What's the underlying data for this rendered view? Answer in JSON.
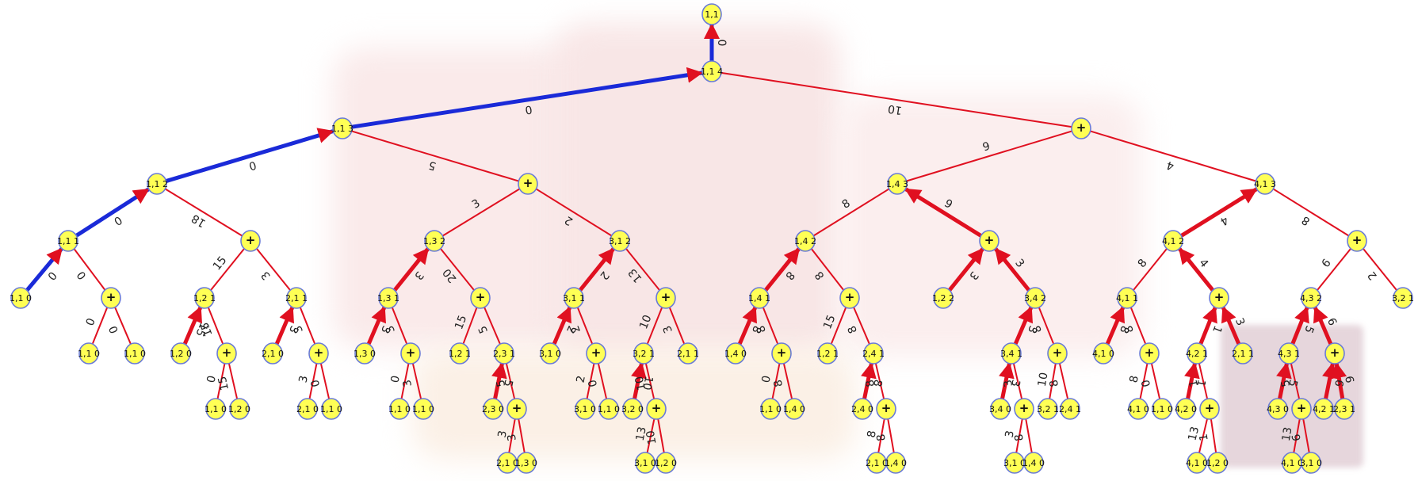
{
  "colors": {
    "node_fill": "#ffff55",
    "node_stroke": "#6a7bd6",
    "red_edge": "#e01020",
    "blue_edge": "#1a2ad8",
    "background_faint": "#f7e4e4"
  },
  "nodes": [
    {
      "id": "n0",
      "label": "1,1"
    },
    {
      "id": "n1",
      "label": "1,1 4"
    },
    {
      "id": "n2",
      "label": "1,1 3"
    },
    {
      "id": "n3",
      "label": "1,1 2"
    },
    {
      "id": "n4",
      "label": "1,1 1"
    },
    {
      "id": "n5",
      "label": "1,1 0"
    },
    {
      "id": "n6",
      "label": "+"
    },
    {
      "id": "n7",
      "label": "1,1 0"
    },
    {
      "id": "n8",
      "label": "1,1 0"
    },
    {
      "id": "n9",
      "label": "+"
    },
    {
      "id": "n10",
      "label": "1,2 1"
    },
    {
      "id": "n11",
      "label": "2,1 1"
    },
    {
      "id": "n12",
      "label": "1,2 0"
    },
    {
      "id": "n13",
      "label": "+"
    },
    {
      "id": "n14",
      "label": "1,1 0"
    },
    {
      "id": "n15",
      "label": "1,2 0"
    },
    {
      "id": "n16",
      "label": "2,1 0"
    },
    {
      "id": "n17",
      "label": "+"
    },
    {
      "id": "n18",
      "label": "2,1 0"
    },
    {
      "id": "n19",
      "label": "1,1 0"
    },
    {
      "id": "n20",
      "label": "+"
    },
    {
      "id": "n21",
      "label": "1,3 2"
    },
    {
      "id": "n22",
      "label": "3,1 2"
    },
    {
      "id": "n23",
      "label": "1,3 1"
    },
    {
      "id": "n24",
      "label": "+"
    },
    {
      "id": "n25",
      "label": "1,3 0"
    },
    {
      "id": "n26",
      "label": "+"
    },
    {
      "id": "n27",
      "label": "1,1 0"
    },
    {
      "id": "n28",
      "label": "1,1 0"
    },
    {
      "id": "n29",
      "label": "1,2 1"
    },
    {
      "id": "n30",
      "label": "2,3 1"
    },
    {
      "id": "n31",
      "label": "2,3 0"
    },
    {
      "id": "n32",
      "label": "+"
    },
    {
      "id": "n33",
      "label": "2,1 0"
    },
    {
      "id": "n34",
      "label": "1,3 0"
    },
    {
      "id": "n35",
      "label": "3,1 1"
    },
    {
      "id": "n36",
      "label": "+"
    },
    {
      "id": "n37",
      "label": "3,1 0"
    },
    {
      "id": "n38",
      "label": "+"
    },
    {
      "id": "n39",
      "label": "3,1 0"
    },
    {
      "id": "n40",
      "label": "1,1 0"
    },
    {
      "id": "n41",
      "label": "3,2 1"
    },
    {
      "id": "n42",
      "label": "2,1 1"
    },
    {
      "id": "n43",
      "label": "3,2 0"
    },
    {
      "id": "n44",
      "label": "+"
    },
    {
      "id": "n45",
      "label": "3,1 0"
    },
    {
      "id": "n46",
      "label": "1,2 0"
    },
    {
      "id": "n47",
      "label": "+"
    },
    {
      "id": "n48",
      "label": "1,4 3"
    },
    {
      "id": "n49",
      "label": "4,1 3"
    },
    {
      "id": "n50",
      "label": "1,4 2"
    },
    {
      "id": "n51",
      "label": "+"
    },
    {
      "id": "n52",
      "label": "1,4 1"
    },
    {
      "id": "n53",
      "label": "+"
    },
    {
      "id": "n54",
      "label": "1,4 0"
    },
    {
      "id": "n55",
      "label": "+"
    },
    {
      "id": "n56",
      "label": "1,1 0"
    },
    {
      "id": "n57",
      "label": "1,4 0"
    },
    {
      "id": "n58",
      "label": "1,2 1"
    },
    {
      "id": "n59",
      "label": "2,4 1"
    },
    {
      "id": "n60",
      "label": "2,4 0"
    },
    {
      "id": "n61",
      "label": "+"
    },
    {
      "id": "n62",
      "label": "2,1 0"
    },
    {
      "id": "n63",
      "label": "1,4 0"
    },
    {
      "id": "n64",
      "label": "1,2 2"
    },
    {
      "id": "n65",
      "label": "3,4 2"
    },
    {
      "id": "n66",
      "label": "3,4 1"
    },
    {
      "id": "n67",
      "label": "+"
    },
    {
      "id": "n68",
      "label": "3,4 0"
    },
    {
      "id": "n69",
      "label": "+"
    },
    {
      "id": "n70",
      "label": "3,1 0"
    },
    {
      "id": "n71",
      "label": "1,4 0"
    },
    {
      "id": "n72",
      "label": "3,2 1"
    },
    {
      "id": "n73",
      "label": "2,4 1"
    },
    {
      "id": "n74",
      "label": "4,1 2"
    },
    {
      "id": "n75",
      "label": "+"
    },
    {
      "id": "n76",
      "label": "4,1 1"
    },
    {
      "id": "n77",
      "label": "+"
    },
    {
      "id": "n78",
      "label": "4,1 0"
    },
    {
      "id": "n79",
      "label": "+"
    },
    {
      "id": "n80",
      "label": "4,1 0"
    },
    {
      "id": "n81",
      "label": "1,1 0"
    },
    {
      "id": "n82",
      "label": "1,4 0"
    },
    {
      "id": "n83",
      "label": "4,2 1"
    },
    {
      "id": "n84",
      "label": "2,1 1"
    },
    {
      "id": "n85",
      "label": "4,2 0"
    },
    {
      "id": "n86",
      "label": "+"
    },
    {
      "id": "n87",
      "label": "4,1 0"
    },
    {
      "id": "n88",
      "label": "1,2 0"
    },
    {
      "id": "n89",
      "label": "4,3 2"
    },
    {
      "id": "n90",
      "label": "3,2 1"
    },
    {
      "id": "n91",
      "label": "4,3 1"
    },
    {
      "id": "n92",
      "label": "+"
    },
    {
      "id": "n93",
      "label": "4,3 0"
    },
    {
      "id": "n94",
      "label": "+"
    },
    {
      "id": "n95",
      "label": "4,2 1"
    },
    {
      "id": "n96",
      "label": "2,3 1"
    },
    {
      "id": "n97",
      "label": "4,1 0"
    },
    {
      "id": "n98",
      "label": "3,1 0"
    }
  ],
  "edges": [
    {
      "from": "n1",
      "to": "n0",
      "label": "0",
      "color": "blue",
      "w": 5,
      "arrow": true
    },
    {
      "from": "n2",
      "to": "n1",
      "label": "0",
      "color": "blue",
      "w": 5,
      "arrow": true
    },
    {
      "from": "n3",
      "to": "n2",
      "label": "0",
      "color": "blue",
      "w": 5,
      "arrow": true
    },
    {
      "from": "n4",
      "to": "n3",
      "label": "0",
      "color": "blue",
      "w": 5,
      "arrow": true
    },
    {
      "from": "n5",
      "to": "n4",
      "label": "0",
      "color": "blue",
      "w": 5,
      "arrow": true
    },
    {
      "from": "n4",
      "to": "n6",
      "label": "0",
      "color": "red",
      "w": 2
    },
    {
      "from": "n6",
      "to": "n7",
      "label": "0",
      "color": "red",
      "w": 2
    },
    {
      "from": "n6",
      "to": "n8",
      "label": "0",
      "color": "red",
      "w": 2
    },
    {
      "from": "n3",
      "to": "n9",
      "label": "18",
      "color": "red",
      "w": 2
    },
    {
      "from": "n9",
      "to": "n10",
      "label": "15",
      "color": "red",
      "w": 2
    },
    {
      "from": "n9",
      "to": "n11",
      "label": "3",
      "color": "red",
      "w": 2
    },
    {
      "from": "n12",
      "to": "n10",
      "label": "15",
      "color": "red",
      "w": 5,
      "arrow": true
    },
    {
      "from": "n10",
      "to": "n13",
      "label": "15",
      "color": "red",
      "w": 2
    },
    {
      "from": "n13",
      "to": "n14",
      "label": "0",
      "color": "red",
      "w": 2
    },
    {
      "from": "n13",
      "to": "n15",
      "label": "15",
      "color": "red",
      "w": 2
    },
    {
      "from": "n16",
      "to": "n11",
      "label": "3",
      "color": "red",
      "w": 5,
      "arrow": true
    },
    {
      "from": "n11",
      "to": "n17",
      "label": "3",
      "color": "red",
      "w": 2
    },
    {
      "from": "n17",
      "to": "n18",
      "label": "3",
      "color": "red",
      "w": 2
    },
    {
      "from": "n17",
      "to": "n19",
      "label": "0",
      "color": "red",
      "w": 2
    },
    {
      "from": "n2",
      "to": "n20",
      "label": "5",
      "color": "red",
      "w": 2
    },
    {
      "from": "n20",
      "to": "n21",
      "label": "3",
      "color": "red",
      "w": 2
    },
    {
      "from": "n20",
      "to": "n22",
      "label": "2",
      "color": "red",
      "w": 2
    },
    {
      "from": "n23",
      "to": "n21",
      "label": "3",
      "color": "red",
      "w": 5,
      "arrow": true
    },
    {
      "from": "n21",
      "to": "n24",
      "label": "20",
      "color": "red",
      "w": 2
    },
    {
      "from": "n25",
      "to": "n23",
      "label": "3",
      "color": "red",
      "w": 5,
      "arrow": true
    },
    {
      "from": "n23",
      "to": "n26",
      "label": "3",
      "color": "red",
      "w": 2
    },
    {
      "from": "n26",
      "to": "n27",
      "label": "0",
      "color": "red",
      "w": 2
    },
    {
      "from": "n26",
      "to": "n28",
      "label": "3",
      "color": "red",
      "w": 2
    },
    {
      "from": "n24",
      "to": "n29",
      "label": "15",
      "color": "red",
      "w": 2
    },
    {
      "from": "n24",
      "to": "n30",
      "label": "5",
      "color": "red",
      "w": 2
    },
    {
      "from": "n31",
      "to": "n30",
      "label": "5",
      "color": "red",
      "w": 5,
      "arrow": true
    },
    {
      "from": "n30",
      "to": "n32",
      "label": "5",
      "color": "red",
      "w": 2
    },
    {
      "from": "n32",
      "to": "n33",
      "label": "3",
      "color": "red",
      "w": 2
    },
    {
      "from": "n32",
      "to": "n34",
      "label": "3",
      "color": "red",
      "w": 2
    },
    {
      "from": "n35",
      "to": "n22",
      "label": "2",
      "color": "red",
      "w": 5,
      "arrow": true
    },
    {
      "from": "n22",
      "to": "n36",
      "label": "13",
      "color": "red",
      "w": 2
    },
    {
      "from": "n37",
      "to": "n35",
      "label": "2",
      "color": "red",
      "w": 5,
      "arrow": true
    },
    {
      "from": "n35",
      "to": "n38",
      "label": "2",
      "color": "red",
      "w": 2
    },
    {
      "from": "n38",
      "to": "n39",
      "label": "2",
      "color": "red",
      "w": 2
    },
    {
      "from": "n38",
      "to": "n40",
      "label": "0",
      "color": "red",
      "w": 2
    },
    {
      "from": "n36",
      "to": "n41",
      "label": "10",
      "color": "red",
      "w": 2
    },
    {
      "from": "n36",
      "to": "n42",
      "label": "3",
      "color": "red",
      "w": 2
    },
    {
      "from": "n43",
      "to": "n41",
      "label": "10",
      "color": "red",
      "w": 5,
      "arrow": true
    },
    {
      "from": "n41",
      "to": "n44",
      "label": "10",
      "color": "red",
      "w": 2
    },
    {
      "from": "n44",
      "to": "n45",
      "label": "13",
      "color": "red",
      "w": 2
    },
    {
      "from": "n44",
      "to": "n46",
      "label": "10",
      "color": "red",
      "w": 2
    },
    {
      "from": "n1",
      "to": "n47",
      "label": "10",
      "color": "red",
      "w": 2
    },
    {
      "from": "n47",
      "to": "n48",
      "label": "9",
      "color": "red",
      "w": 2
    },
    {
      "from": "n47",
      "to": "n49",
      "label": "4",
      "color": "red",
      "w": 2
    },
    {
      "from": "n48",
      "to": "n50",
      "label": "8",
      "color": "red",
      "w": 2
    },
    {
      "from": "n51",
      "to": "n48",
      "label": "9",
      "color": "red",
      "w": 5,
      "arrow": true
    },
    {
      "from": "n52",
      "to": "n50",
      "label": "8",
      "color": "red",
      "w": 5,
      "arrow": true
    },
    {
      "from": "n50",
      "to": "n53",
      "label": "8",
      "color": "red",
      "w": 2
    },
    {
      "from": "n54",
      "to": "n52",
      "label": "8",
      "color": "red",
      "w": 5,
      "arrow": true
    },
    {
      "from": "n52",
      "to": "n55",
      "label": "8",
      "color": "red",
      "w": 2
    },
    {
      "from": "n55",
      "to": "n56",
      "label": "0",
      "color": "red",
      "w": 2
    },
    {
      "from": "n55",
      "to": "n57",
      "label": "8",
      "color": "red",
      "w": 2
    },
    {
      "from": "n53",
      "to": "n58",
      "label": "15",
      "color": "red",
      "w": 2
    },
    {
      "from": "n53",
      "to": "n59",
      "label": "8",
      "color": "red",
      "w": 2
    },
    {
      "from": "n60",
      "to": "n59",
      "label": "8",
      "color": "red",
      "w": 5,
      "arrow": true
    },
    {
      "from": "n59",
      "to": "n61",
      "label": "8",
      "color": "red",
      "w": 2
    },
    {
      "from": "n61",
      "to": "n62",
      "label": "8",
      "color": "red",
      "w": 2
    },
    {
      "from": "n61",
      "to": "n63",
      "label": "8",
      "color": "red",
      "w": 2
    },
    {
      "from": "n64",
      "to": "n51",
      "label": "3",
      "color": "red",
      "w": 5,
      "arrow": true
    },
    {
      "from": "n65",
      "to": "n51",
      "label": "3",
      "color": "red",
      "w": 5,
      "arrow": true
    },
    {
      "from": "n66",
      "to": "n65",
      "label": "3",
      "color": "red",
      "w": 5,
      "arrow": true
    },
    {
      "from": "n65",
      "to": "n67",
      "label": "8",
      "color": "red",
      "w": 2
    },
    {
      "from": "n68",
      "to": "n66",
      "label": "3",
      "color": "red",
      "w": 5,
      "arrow": true
    },
    {
      "from": "n66",
      "to": "n69",
      "label": "3",
      "color": "red",
      "w": 2
    },
    {
      "from": "n69",
      "to": "n70",
      "label": "3",
      "color": "red",
      "w": 2
    },
    {
      "from": "n69",
      "to": "n71",
      "label": "8",
      "color": "red",
      "w": 2
    },
    {
      "from": "n67",
      "to": "n72",
      "label": "10",
      "color": "red",
      "w": 2
    },
    {
      "from": "n67",
      "to": "n73",
      "label": "8",
      "color": "red",
      "w": 2
    },
    {
      "from": "n74",
      "to": "n49",
      "label": "4",
      "color": "red",
      "w": 5,
      "arrow": true
    },
    {
      "from": "n49",
      "to": "n75",
      "label": "8",
      "color": "red",
      "w": 2
    },
    {
      "from": "n74",
      "to": "n76",
      "label": "8",
      "color": "red",
      "w": 2
    },
    {
      "from": "n77",
      "to": "n74",
      "label": "4",
      "color": "red",
      "w": 5,
      "arrow": true
    },
    {
      "from": "n78",
      "to": "n76",
      "label": "8",
      "color": "red",
      "w": 5,
      "arrow": true
    },
    {
      "from": "n76",
      "to": "n79",
      "label": "8",
      "color": "red",
      "w": 2
    },
    {
      "from": "n79",
      "to": "n80",
      "label": "8",
      "color": "red",
      "w": 2
    },
    {
      "from": "n79",
      "to": "n81",
      "label": "0",
      "color": "red",
      "w": 2
    },
    {
      "from": "n83",
      "to": "n77",
      "label": "1",
      "color": "red",
      "w": 5,
      "arrow": true
    },
    {
      "from": "n84",
      "to": "n77",
      "label": "3",
      "color": "red",
      "w": 5,
      "arrow": true
    },
    {
      "from": "n85",
      "to": "n83",
      "label": "1",
      "color": "red",
      "w": 5,
      "arrow": true
    },
    {
      "from": "n83",
      "to": "n86",
      "label": "1",
      "color": "red",
      "w": 2
    },
    {
      "from": "n86",
      "to": "n87",
      "label": "13",
      "color": "red",
      "w": 2
    },
    {
      "from": "n86",
      "to": "n88",
      "label": "1",
      "color": "red",
      "w": 2
    },
    {
      "from": "n75",
      "to": "n89",
      "label": "6",
      "color": "red",
      "w": 2
    },
    {
      "from": "n75",
      "to": "n90",
      "label": "2",
      "color": "red",
      "w": 2
    },
    {
      "from": "n91",
      "to": "n89",
      "label": "5",
      "color": "red",
      "w": 5,
      "arrow": true
    },
    {
      "from": "n92",
      "to": "n89",
      "label": "6",
      "color": "red",
      "w": 5,
      "arrow": true
    },
    {
      "from": "n93",
      "to": "n91",
      "label": "5",
      "color": "red",
      "w": 5,
      "arrow": true
    },
    {
      "from": "n91",
      "to": "n94",
      "label": "5",
      "color": "red",
      "w": 2
    },
    {
      "from": "n95",
      "to": "n92",
      "label": "6",
      "color": "red",
      "w": 5,
      "arrow": true
    },
    {
      "from": "n96",
      "to": "n92",
      "label": "6",
      "color": "red",
      "w": 5,
      "arrow": true
    },
    {
      "from": "n94",
      "to": "n97",
      "label": "13",
      "color": "red",
      "w": 2
    },
    {
      "from": "n94",
      "to": "n98",
      "label": "6",
      "color": "red",
      "w": 2
    }
  ]
}
